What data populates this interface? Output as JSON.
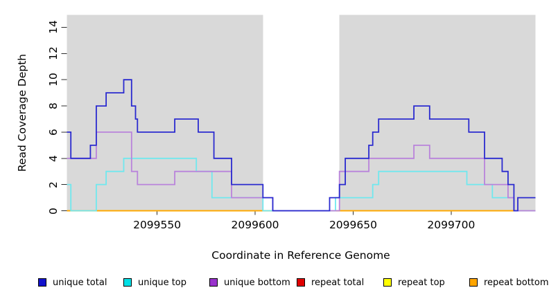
{
  "figure": {
    "y_axis_title": "Read Coverage Depth",
    "x_axis_title": "Coordinate in Reference Genome"
  },
  "chart_data": {
    "type": "line",
    "subtype": "step-coverage-plot",
    "title": "",
    "xlabel": "Coordinate in Reference Genome",
    "ylabel": "Read Coverage Depth",
    "xlim": [
      2099504,
      2099743
    ],
    "ylim": [
      0,
      14.95
    ],
    "x_ticks": [
      2099550,
      2099600,
      2099650,
      2099700
    ],
    "y_ticks": [
      0,
      2,
      4,
      6,
      8,
      10,
      12,
      14
    ],
    "grid": "off",
    "panel_bg": "#d9d9d9",
    "masked_region": {
      "x_start": 2099604,
      "x_end": 2099643,
      "color": "#ffffff"
    },
    "legend_position": "bottom",
    "draw_order": [
      "repeat total",
      "repeat top",
      "repeat bottom",
      "unique top",
      "unique bottom",
      "unique total"
    ],
    "series": [
      {
        "name": "unique total",
        "line_color": "#2a2acf",
        "legend_color": "#1212cc",
        "steps": [
          [
            2099504,
            6
          ],
          [
            2099506,
            4
          ],
          [
            2099516,
            5
          ],
          [
            2099519,
            8
          ],
          [
            2099524,
            9
          ],
          [
            2099533,
            10
          ],
          [
            2099537,
            8
          ],
          [
            2099539,
            7
          ],
          [
            2099540,
            6
          ],
          [
            2099559,
            7
          ],
          [
            2099571,
            6
          ],
          [
            2099579,
            4
          ],
          [
            2099588,
            2
          ],
          [
            2099604,
            1
          ],
          [
            2099609,
            0
          ],
          [
            2099638,
            1
          ],
          [
            2099643,
            2
          ],
          [
            2099646,
            4
          ],
          [
            2099658,
            5
          ],
          [
            2099660,
            6
          ],
          [
            2099663,
            7
          ],
          [
            2099681,
            8
          ],
          [
            2099689,
            7
          ],
          [
            2099709,
            6
          ],
          [
            2099717,
            4
          ],
          [
            2099726,
            3
          ],
          [
            2099729,
            2
          ],
          [
            2099732,
            0
          ],
          [
            2099734,
            1
          ]
        ]
      },
      {
        "name": "unique top",
        "line_color": "#70e8ee",
        "legend_color": "#00e0e6",
        "steps": [
          [
            2099504,
            2
          ],
          [
            2099506,
            0
          ],
          [
            2099519,
            2
          ],
          [
            2099524,
            3
          ],
          [
            2099533,
            4
          ],
          [
            2099570,
            3
          ],
          [
            2099578,
            1
          ],
          [
            2099604,
            0
          ],
          [
            2099641,
            1
          ],
          [
            2099660,
            2
          ],
          [
            2099663,
            3
          ],
          [
            2099708,
            2
          ],
          [
            2099721,
            1
          ],
          [
            2099732,
            0
          ]
        ]
      },
      {
        "name": "unique bottom",
        "line_color": "#b983db",
        "legend_color": "#9932cc",
        "steps": [
          [
            2099504,
            4
          ],
          [
            2099519,
            6
          ],
          [
            2099537,
            3
          ],
          [
            2099540,
            2
          ],
          [
            2099559,
            3
          ],
          [
            2099588,
            1
          ],
          [
            2099609,
            0
          ],
          [
            2099643,
            3
          ],
          [
            2099658,
            4
          ],
          [
            2099681,
            5
          ],
          [
            2099689,
            4
          ],
          [
            2099717,
            2
          ],
          [
            2099729,
            1
          ],
          [
            2099732,
            0
          ]
        ]
      },
      {
        "name": "repeat total",
        "line_color": "#e00000",
        "legend_color": "#e00000",
        "steps": [
          [
            2099504,
            0
          ]
        ]
      },
      {
        "name": "repeat top",
        "line_color": "#ffff00",
        "legend_color": "#ffff00",
        "steps": [
          [
            2099504,
            0
          ]
        ]
      },
      {
        "name": "repeat bottom",
        "line_color": "#ffa500",
        "legend_color": "#ffa500",
        "steps": [
          [
            2099504,
            0
          ]
        ]
      }
    ]
  }
}
